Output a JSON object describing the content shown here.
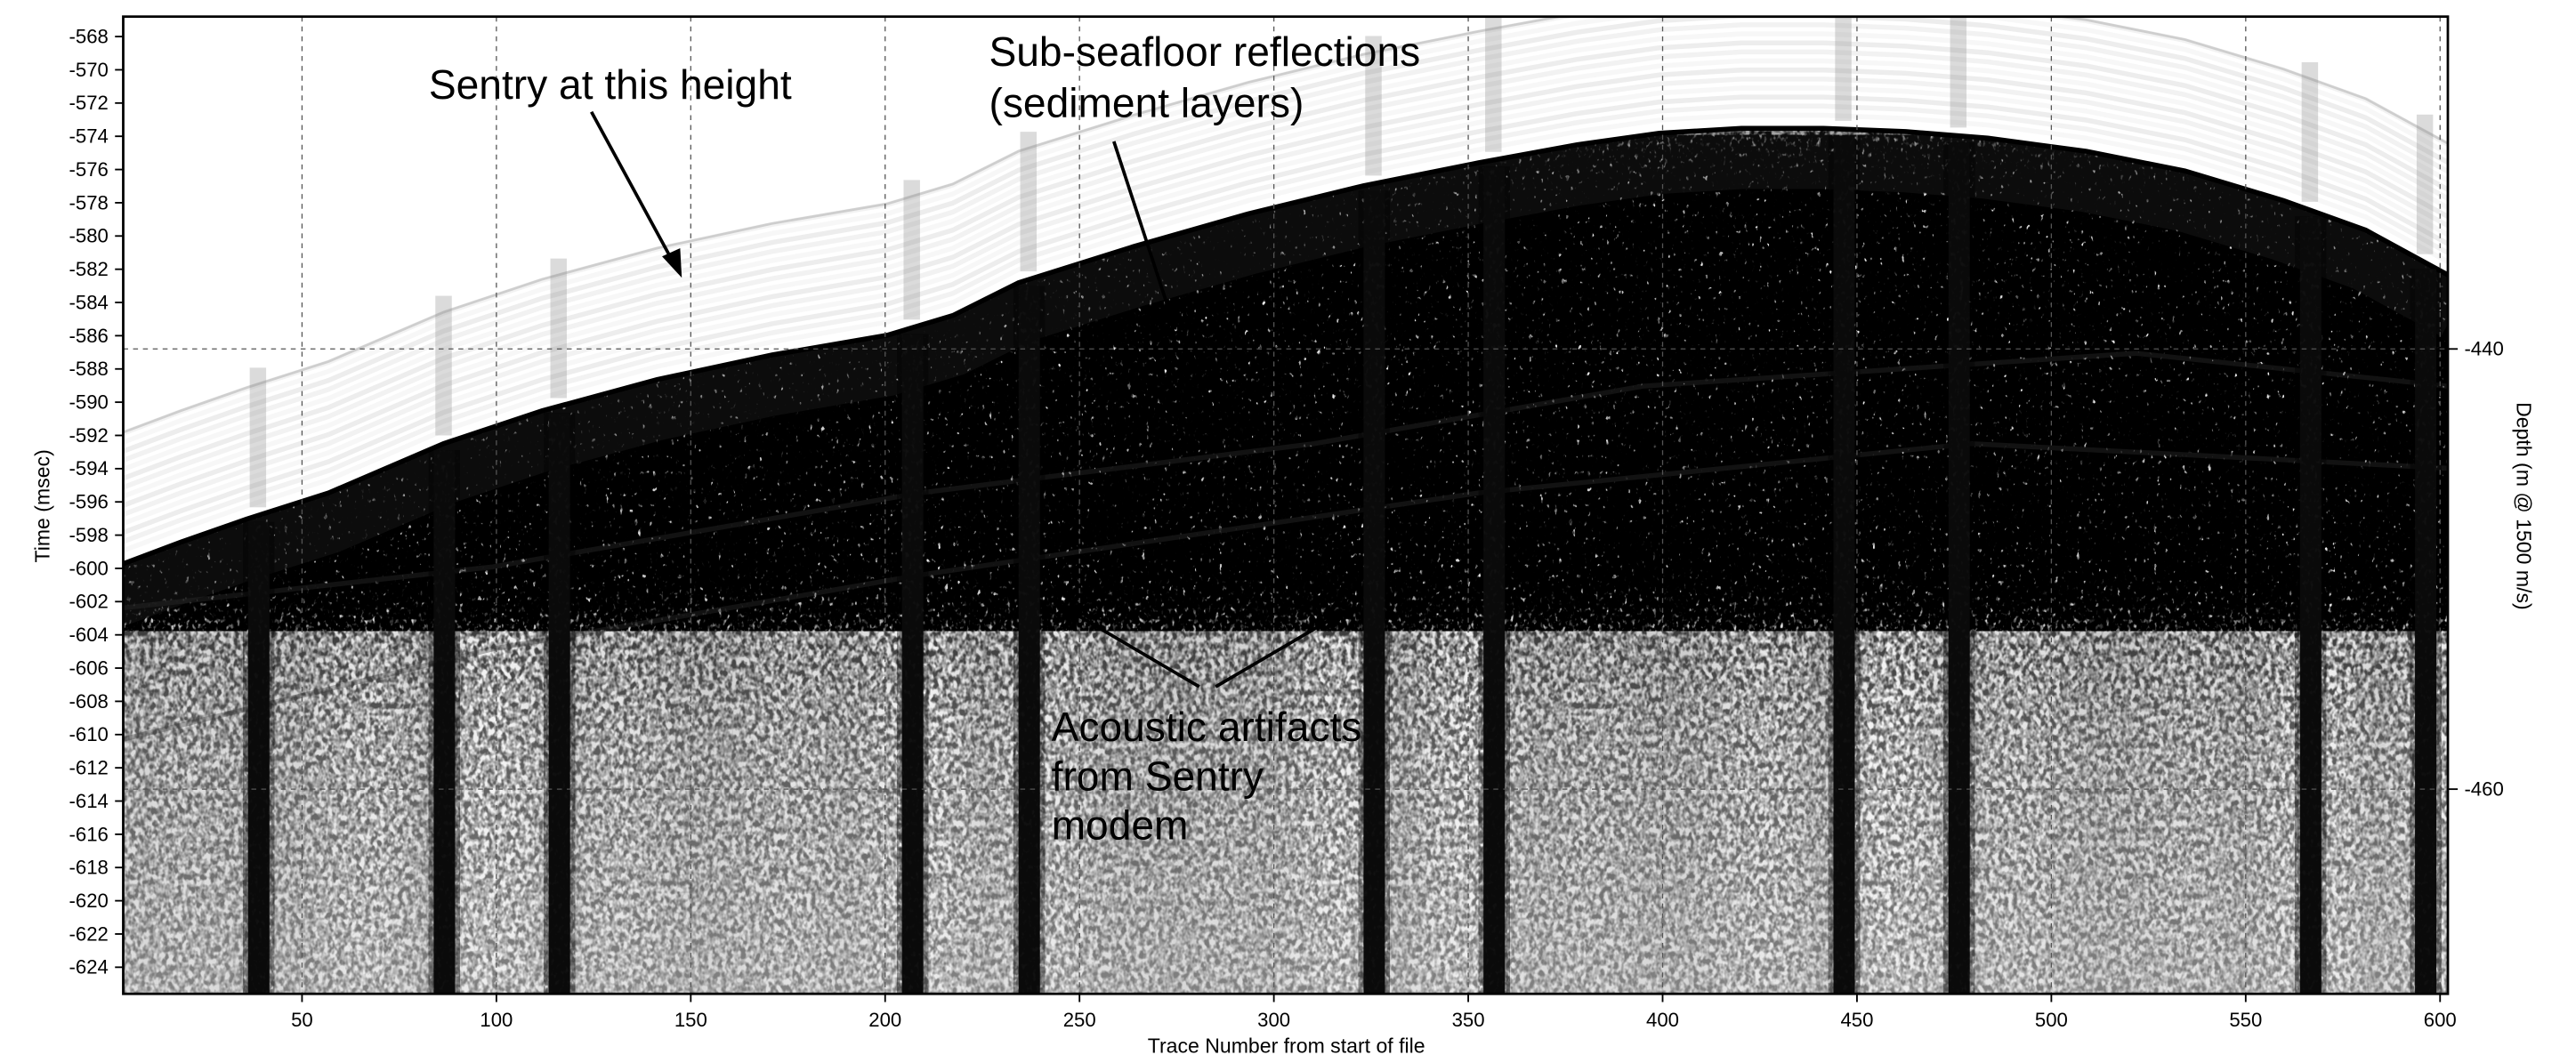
{
  "chart_data": {
    "type": "image",
    "xlabel": "Trace Number from start of file",
    "ylabel": "Time (msec)",
    "y2label": "Depth (m @ 1500 m/s)",
    "xlim": [
      4,
      602
    ],
    "xticks": [
      50,
      100,
      150,
      200,
      250,
      300,
      350,
      400,
      450,
      500,
      550,
      600
    ],
    "ylim": [
      -625.6,
      -566.8
    ],
    "yticks": [
      -568,
      -570,
      -572,
      -574,
      -576,
      -578,
      -580,
      -582,
      -584,
      -586,
      -588,
      -590,
      -592,
      -594,
      -596,
      -598,
      -600,
      -602,
      -604,
      -606,
      -608,
      -610,
      -612,
      -614,
      -616,
      -618,
      -620,
      -622,
      -624
    ],
    "y2lim": [
      -469.3,
      -424.9
    ],
    "y2ticks": [
      -440,
      -460
    ],
    "grid": true,
    "annotations": [
      {
        "lines": [
          "Sentry at this height"
        ]
      },
      {
        "lines": [
          "Sub-seafloor reflections",
          "(sediment layers)"
        ]
      },
      {
        "lines": [
          "Acoustic artifacts",
          "from Sentry",
          "modem"
        ]
      }
    ]
  }
}
